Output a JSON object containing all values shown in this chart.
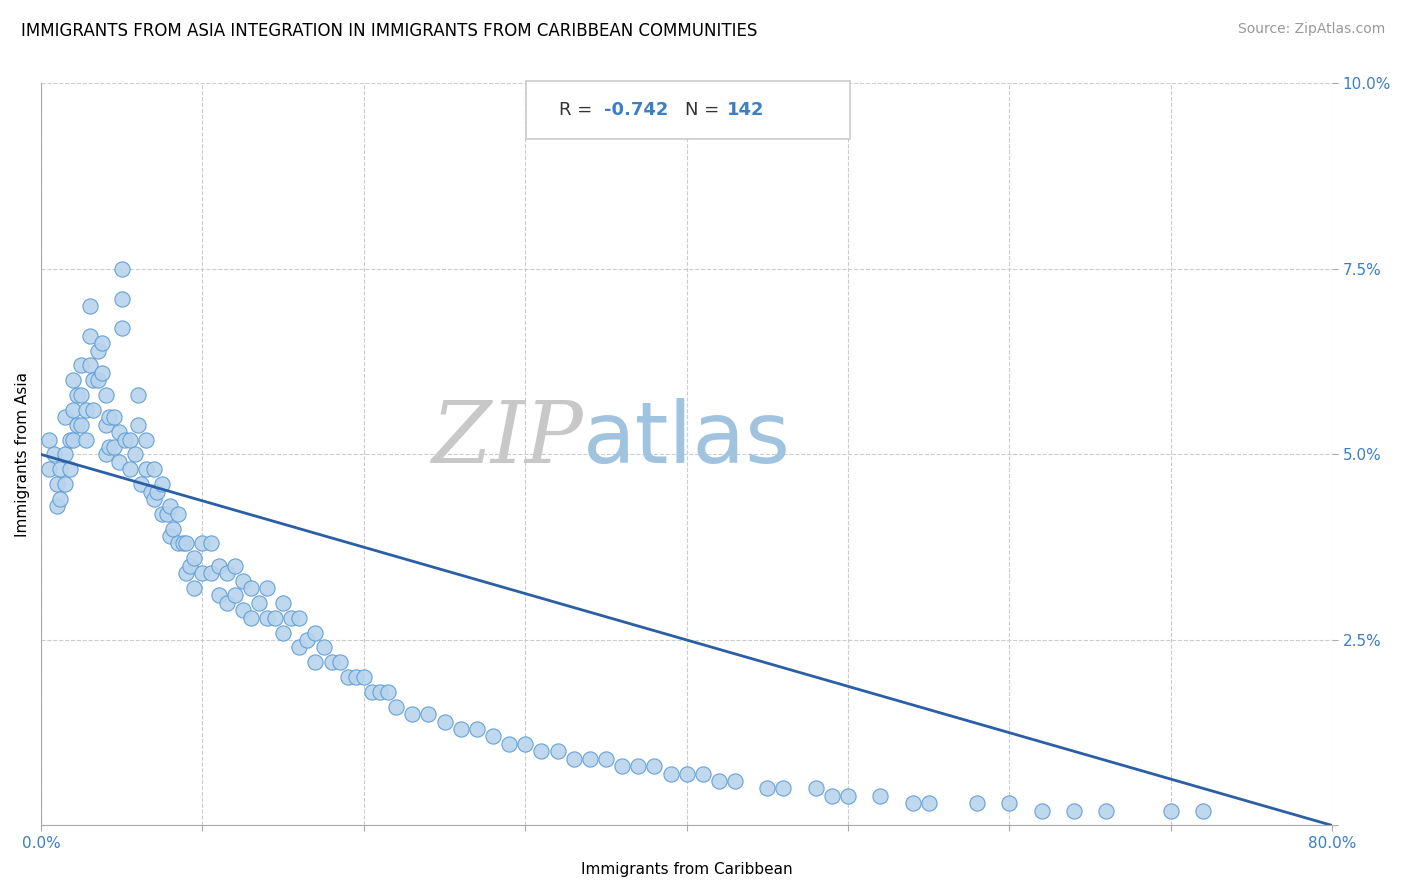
{
  "title": "IMMIGRANTS FROM ASIA INTEGRATION IN IMMIGRANTS FROM CARIBBEAN COMMUNITIES",
  "source": "Source: ZipAtlas.com",
  "xlabel": "Immigrants from Caribbean",
  "ylabel": "Immigrants from Asia",
  "R": -0.742,
  "N": 142,
  "xlim": [
    0.0,
    0.8
  ],
  "ylim": [
    0.0,
    0.1
  ],
  "xticks": [
    0.0,
    0.1,
    0.2,
    0.3,
    0.4,
    0.5,
    0.6,
    0.7,
    0.8
  ],
  "xticklabels": [
    "0.0%",
    "",
    "",
    "",
    "",
    "",
    "",
    "",
    "80.0%"
  ],
  "yticks": [
    0.0,
    0.025,
    0.05,
    0.075,
    0.1
  ],
  "yticklabels": [
    "",
    "2.5%",
    "5.0%",
    "7.5%",
    "10.0%"
  ],
  "dot_color": "#b8d4ed",
  "dot_edge_color": "#5b9bd5",
  "line_color": "#2b5fa5",
  "background_color": "#ffffff",
  "grid_color": "#cccccc",
  "zip_color": "#c0c0c0",
  "atlas_color": "#5b9bd5",
  "scatter_x": [
    0.005,
    0.005,
    0.008,
    0.01,
    0.01,
    0.012,
    0.012,
    0.015,
    0.015,
    0.015,
    0.018,
    0.018,
    0.02,
    0.02,
    0.02,
    0.022,
    0.022,
    0.025,
    0.025,
    0.025,
    0.028,
    0.028,
    0.03,
    0.03,
    0.03,
    0.032,
    0.032,
    0.035,
    0.035,
    0.038,
    0.038,
    0.04,
    0.04,
    0.04,
    0.042,
    0.042,
    0.045,
    0.045,
    0.048,
    0.048,
    0.05,
    0.05,
    0.05,
    0.052,
    0.055,
    0.055,
    0.058,
    0.06,
    0.06,
    0.062,
    0.065,
    0.065,
    0.068,
    0.07,
    0.07,
    0.072,
    0.075,
    0.075,
    0.078,
    0.08,
    0.08,
    0.082,
    0.085,
    0.085,
    0.088,
    0.09,
    0.09,
    0.092,
    0.095,
    0.095,
    0.1,
    0.1,
    0.105,
    0.105,
    0.11,
    0.11,
    0.115,
    0.115,
    0.12,
    0.12,
    0.125,
    0.125,
    0.13,
    0.13,
    0.135,
    0.14,
    0.14,
    0.145,
    0.15,
    0.15,
    0.155,
    0.16,
    0.16,
    0.165,
    0.17,
    0.17,
    0.175,
    0.18,
    0.185,
    0.19,
    0.195,
    0.2,
    0.205,
    0.21,
    0.215,
    0.22,
    0.23,
    0.24,
    0.25,
    0.26,
    0.27,
    0.28,
    0.29,
    0.3,
    0.31,
    0.32,
    0.33,
    0.34,
    0.35,
    0.36,
    0.37,
    0.38,
    0.39,
    0.4,
    0.41,
    0.42,
    0.43,
    0.45,
    0.46,
    0.48,
    0.49,
    0.5,
    0.52,
    0.54,
    0.55,
    0.58,
    0.6,
    0.62,
    0.64,
    0.66,
    0.7,
    0.72
  ],
  "scatter_y": [
    0.052,
    0.048,
    0.05,
    0.046,
    0.043,
    0.048,
    0.044,
    0.055,
    0.05,
    0.046,
    0.052,
    0.048,
    0.06,
    0.056,
    0.052,
    0.058,
    0.054,
    0.062,
    0.058,
    0.054,
    0.056,
    0.052,
    0.07,
    0.066,
    0.062,
    0.06,
    0.056,
    0.064,
    0.06,
    0.065,
    0.061,
    0.058,
    0.054,
    0.05,
    0.055,
    0.051,
    0.055,
    0.051,
    0.053,
    0.049,
    0.075,
    0.071,
    0.067,
    0.052,
    0.052,
    0.048,
    0.05,
    0.058,
    0.054,
    0.046,
    0.052,
    0.048,
    0.045,
    0.048,
    0.044,
    0.045,
    0.046,
    0.042,
    0.042,
    0.043,
    0.039,
    0.04,
    0.042,
    0.038,
    0.038,
    0.038,
    0.034,
    0.035,
    0.036,
    0.032,
    0.038,
    0.034,
    0.038,
    0.034,
    0.035,
    0.031,
    0.034,
    0.03,
    0.035,
    0.031,
    0.033,
    0.029,
    0.032,
    0.028,
    0.03,
    0.032,
    0.028,
    0.028,
    0.03,
    0.026,
    0.028,
    0.028,
    0.024,
    0.025,
    0.026,
    0.022,
    0.024,
    0.022,
    0.022,
    0.02,
    0.02,
    0.02,
    0.018,
    0.018,
    0.018,
    0.016,
    0.015,
    0.015,
    0.014,
    0.013,
    0.013,
    0.012,
    0.011,
    0.011,
    0.01,
    0.01,
    0.009,
    0.009,
    0.009,
    0.008,
    0.008,
    0.008,
    0.007,
    0.007,
    0.007,
    0.006,
    0.006,
    0.005,
    0.005,
    0.005,
    0.004,
    0.004,
    0.004,
    0.003,
    0.003,
    0.003,
    0.003,
    0.002,
    0.002,
    0.002,
    0.002,
    0.002
  ],
  "trend_x_start": 0.0,
  "trend_y_start": 0.05,
  "trend_x_end": 0.8,
  "trend_y_end": 0.0,
  "title_fontsize": 12,
  "axis_label_fontsize": 11,
  "tick_fontsize": 11,
  "source_fontsize": 10
}
